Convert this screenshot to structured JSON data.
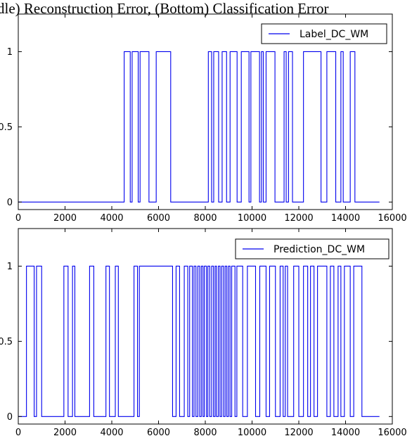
{
  "figure": {
    "title": "dle) Reconstruction Error, (Bottom) Classification Error"
  },
  "colors": {
    "series": "#0000ee",
    "axes": "#000000",
    "background": "#ffffff"
  },
  "chart_data": [
    {
      "type": "line",
      "step": true,
      "xlim": [
        0,
        16000
      ],
      "ylim": [
        -0.05,
        1.25
      ],
      "x_ticks": [
        "0",
        "2000",
        "4000",
        "6000",
        "8000",
        "10000",
        "12000",
        "14000",
        "16000"
      ],
      "x_tick_values": [
        0,
        2000,
        4000,
        6000,
        8000,
        10000,
        12000,
        14000,
        16000
      ],
      "y_ticks": [
        "0",
        "0.5",
        "1"
      ],
      "y_tick_values": [
        0,
        0.5,
        1
      ],
      "grid": false,
      "legend_position": "top-right",
      "series": [
        {
          "name": "Label_DC_WM",
          "transitions_x": [
            0,
            4530,
            4790,
            4870,
            5130,
            5210,
            5590,
            5900,
            6520,
            8130,
            8270,
            8360,
            8570,
            8720,
            8910,
            9060,
            9360,
            9540,
            9870,
            9950,
            10320,
            10400,
            10480,
            10600,
            10980,
            11370,
            11460,
            11560,
            11730,
            12200,
            12950,
            13200,
            13580,
            13800,
            13900,
            14200,
            14400,
            14680,
            15450
          ],
          "values": [
            0,
            1,
            0,
            1,
            0,
            1,
            0,
            1,
            0,
            1,
            0,
            1,
            0,
            1,
            0,
            1,
            0,
            1,
            0,
            1,
            0,
            1,
            0,
            1,
            0,
            1,
            0,
            1,
            0,
            1,
            0,
            1,
            0,
            1,
            0,
            1,
            0,
            0
          ]
        }
      ]
    },
    {
      "type": "line",
      "step": true,
      "xlim": [
        0,
        16000
      ],
      "ylim": [
        -0.05,
        1.25
      ],
      "x_ticks": [
        "0",
        "2000",
        "4000",
        "6000",
        "8000",
        "10000",
        "12000",
        "14000",
        "16000"
      ],
      "x_tick_values": [
        0,
        2000,
        4000,
        6000,
        8000,
        10000,
        12000,
        14000,
        16000
      ],
      "y_ticks": [
        "0",
        "0.5",
        "1"
      ],
      "y_tick_values": [
        0,
        0.5,
        1
      ],
      "grid": false,
      "legend_position": "top-right",
      "series": [
        {
          "name": "Prediction_DC_WM",
          "transitions_x": [
            0,
            350,
            680,
            780,
            1000,
            1950,
            2130,
            2320,
            2420,
            3050,
            3230,
            3750,
            3900,
            4150,
            4280,
            4950,
            5100,
            5180,
            6600,
            6750,
            6900,
            7100,
            7250,
            7330,
            7450,
            7520,
            7600,
            7680,
            7760,
            7830,
            7900,
            7960,
            8050,
            8110,
            8190,
            8270,
            8350,
            8420,
            8480,
            8560,
            8630,
            8700,
            8780,
            8850,
            8920,
            8990,
            9060,
            9130,
            9270,
            9350,
            9600,
            9800,
            10150,
            10330,
            10600,
            10750,
            11000,
            11200,
            11330,
            11420,
            11520,
            11780,
            12000,
            12200,
            12380,
            12500,
            12650,
            12800,
            13200,
            13350,
            13500,
            13680,
            13800,
            13950,
            14200,
            14350,
            14700,
            15450
          ],
          "values": [
            0,
            1,
            0,
            1,
            0,
            1,
            0,
            1,
            0,
            1,
            0,
            1,
            0,
            1,
            0,
            1,
            0,
            1,
            0,
            1,
            0,
            1,
            0,
            1,
            0,
            1,
            0,
            1,
            0,
            1,
            0,
            1,
            0,
            1,
            0,
            1,
            0,
            1,
            0,
            1,
            0,
            1,
            0,
            1,
            0,
            1,
            0,
            1,
            0,
            1,
            0,
            1,
            0,
            1,
            0,
            1,
            0,
            1,
            0,
            1,
            0,
            1,
            0,
            1,
            0,
            1,
            0,
            1,
            0,
            1,
            0,
            1,
            0,
            1,
            0,
            1,
            0,
            0
          ]
        }
      ]
    }
  ]
}
